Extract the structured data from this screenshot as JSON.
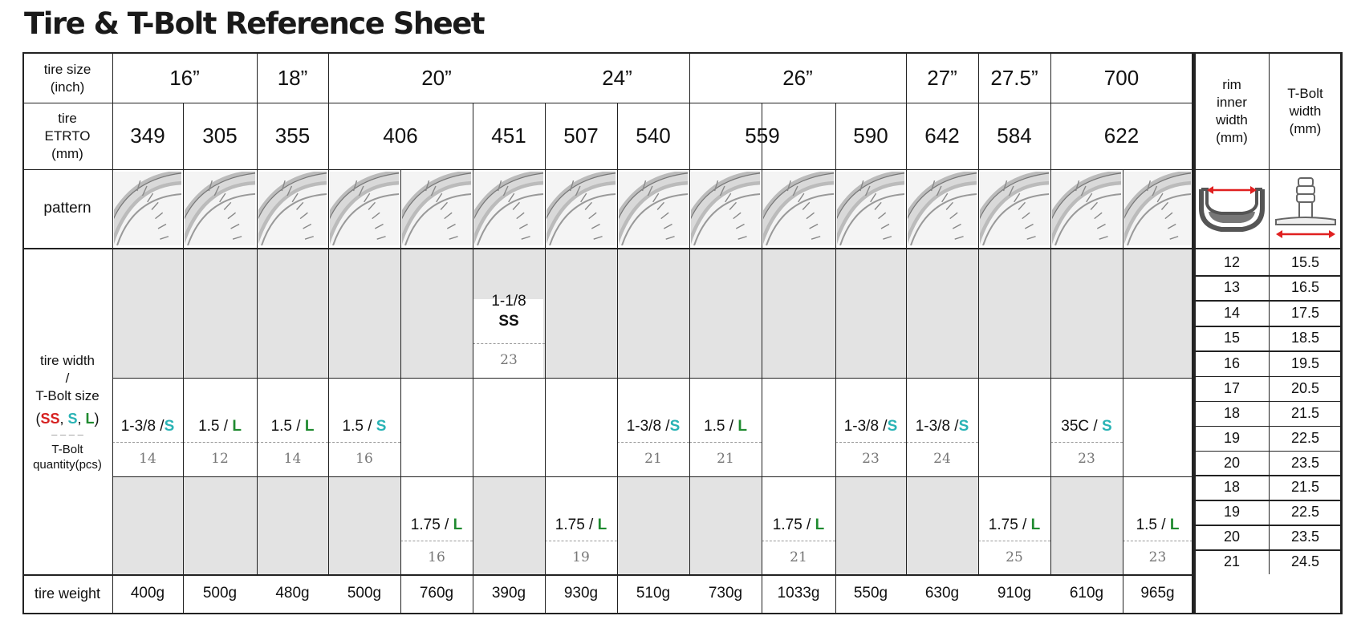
{
  "title": "Tire & T-Bolt Reference Sheet",
  "labels": {
    "tire_size": [
      "tire size",
      "(inch)"
    ],
    "etrto": [
      "tire",
      "ETRTO",
      "(mm)"
    ],
    "pattern": "pattern",
    "width_a": "tire width",
    "width_b": "/",
    "width_c": "T-Bolt size",
    "legend_open": "(",
    "legend_ss": "SS",
    "legend_c1": ", ",
    "legend_s": "S",
    "legend_c2": ", ",
    "legend_l": "L",
    "legend_close": ")",
    "legend_dash": "– – – –",
    "qty_a": "T-Bolt",
    "qty_b": "quantity(pcs)",
    "weight": "tire weight",
    "rim": [
      "rim",
      "inner",
      "width",
      "(mm)"
    ],
    "tbolt": [
      "T-Bolt",
      "width",
      "(mm)"
    ]
  },
  "sizes": [
    "16”",
    "18”",
    "20”",
    "24”",
    "26”",
    "27”",
    "27.5”",
    "700"
  ],
  "etrto": [
    "349",
    "305",
    "355",
    "406",
    "451",
    "507",
    "540",
    "559",
    "590",
    "642",
    "584",
    "622"
  ],
  "entries": [
    {
      "w": "1-1/8",
      "b": "SS",
      "q": "23"
    },
    {
      "w": "1-3/8 /",
      "b": "S",
      "q": "14"
    },
    {
      "w": "1.5 /",
      "b": "L",
      "q": "12"
    },
    {
      "w": "1.5 /",
      "b": "L",
      "q": "14"
    },
    {
      "w": "1.5 /",
      "b": "S",
      "q": "16"
    },
    {
      "w": "1-3/8 /",
      "b": "S",
      "q": "21"
    },
    {
      "w": "1.5 /",
      "b": "L",
      "q": "21"
    },
    {
      "w": "1-3/8 /",
      "b": "S",
      "q": "23"
    },
    {
      "w": "1-3/8 /",
      "b": "S",
      "q": "24"
    },
    {
      "w": "35C /",
      "b": "S",
      "q": "23"
    },
    {
      "w": "1.75 /",
      "b": "L",
      "q": "16"
    },
    {
      "w": "1.75 /",
      "b": "L",
      "q": "19"
    },
    {
      "w": "1.75 /",
      "b": "L",
      "q": "21"
    },
    {
      "w": "1.75 /",
      "b": "L",
      "q": "25"
    },
    {
      "w": "1.5 /",
      "b": "L",
      "q": "23"
    }
  ],
  "weights": [
    "400g",
    "500g",
    "480g",
    "500g",
    "760g",
    "390g",
    "930g",
    "510g",
    "730g",
    "1033g",
    "550g",
    "630g",
    "910g",
    "610g",
    "965g"
  ],
  "rim_table": [
    {
      "rim": "12",
      "bolt": "15.5"
    },
    {
      "rim": "13",
      "bolt": "16.5"
    },
    {
      "rim": "14",
      "bolt": "17.5"
    },
    {
      "rim": "15",
      "bolt": "18.5"
    },
    {
      "rim": "16",
      "bolt": "19.5"
    },
    {
      "rim": "17",
      "bolt": "20.5"
    },
    {
      "rim": "18",
      "bolt": "21.5"
    },
    {
      "rim": "19",
      "bolt": "22.5"
    },
    {
      "rim": "20",
      "bolt": "23.5"
    },
    {
      "rim": "18",
      "bolt": "21.5"
    },
    {
      "rim": "19",
      "bolt": "22.5"
    },
    {
      "rim": "20",
      "bolt": "23.5"
    },
    {
      "rim": "21",
      "bolt": "24.5"
    }
  ],
  "colors": {
    "SS": "#d62020",
    "S": "#29b3b5",
    "L": "#1f8a2f",
    "shade": "#e3e3e3",
    "arrow": "#e02020"
  }
}
